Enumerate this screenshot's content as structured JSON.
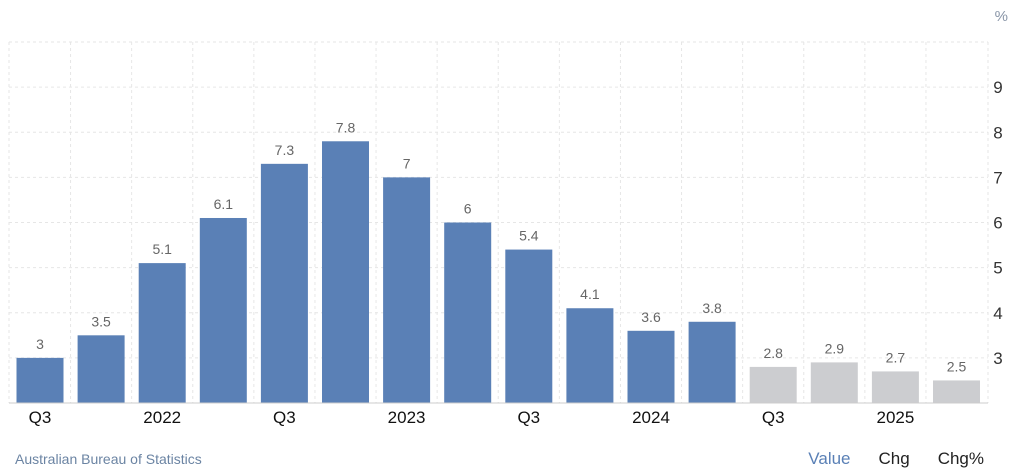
{
  "unit_label": "%",
  "source": "Australian Bureau of Statistics",
  "tabs": [
    {
      "label": "Value",
      "active": true
    },
    {
      "label": "Chg",
      "active": false
    },
    {
      "label": "Chg%",
      "active": false
    }
  ],
  "colors": {
    "actual": "#5a80b6",
    "forecast": "#cccdd0",
    "label": "#666666",
    "grid": "#e6e6e6"
  },
  "chart_data": {
    "type": "bar",
    "title": "",
    "xlabel": "",
    "ylabel": "",
    "ylim": [
      2,
      10
    ],
    "yticks": [
      3,
      4,
      5,
      6,
      7,
      8,
      9
    ],
    "axis_position": "right",
    "grid": true,
    "values": [
      3,
      3.5,
      5.1,
      6.1,
      7.3,
      7.8,
      7,
      6,
      5.4,
      4.1,
      3.6,
      3.8,
      2.8,
      2.9,
      2.7,
      2.5
    ],
    "value_labels": [
      "3",
      "3.5",
      "5.1",
      "6.1",
      "7.3",
      "7.8",
      "7",
      "6",
      "5.4",
      "4.1",
      "3.6",
      "3.8",
      "2.8",
      "2.9",
      "2.7",
      "2.5"
    ],
    "forecast_from_index": 12,
    "x_tick_labels": [
      {
        "label": "Q3",
        "index": 0
      },
      {
        "label": "2022",
        "index": 2
      },
      {
        "label": "Q3",
        "index": 4
      },
      {
        "label": "2023",
        "index": 6
      },
      {
        "label": "Q3",
        "index": 8
      },
      {
        "label": "2024",
        "index": 10
      },
      {
        "label": "Q3",
        "index": 12
      },
      {
        "label": "2025",
        "index": 14
      }
    ]
  }
}
